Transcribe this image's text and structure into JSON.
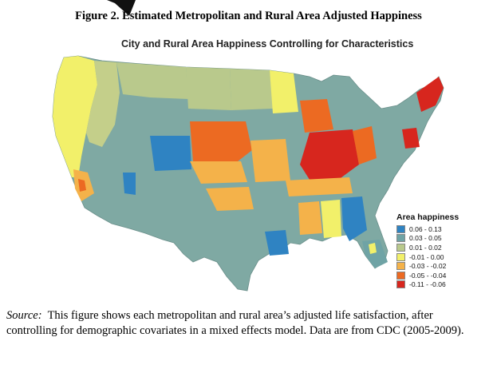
{
  "figure_title": "Figure 2. Estimated Metropolitan and Rural Area Adjusted Happiness",
  "map_title": "City and Rural Area Happiness Controlling for Characteristics",
  "legend": {
    "title": "Area happiness",
    "items": [
      {
        "label": "0.06 - 0.13",
        "color": "#2f83c2"
      },
      {
        "label": "0.03 - 0.05",
        "color": "#6fa3a5"
      },
      {
        "label": "0.01 - 0.02",
        "color": "#b9c98c"
      },
      {
        "label": "-0.01 - 0.00",
        "color": "#f2f06a"
      },
      {
        "label": "-0.03 - -0.02",
        "color": "#f4b24a"
      },
      {
        "label": "-0.05 - -0.04",
        "color": "#ec6a22"
      },
      {
        "label": "-0.11 - -0.06",
        "color": "#d7261e"
      }
    ]
  },
  "caption": {
    "source_label": "Source:",
    "text": "This figure shows each metropolitan and rural area’s adjusted life satisfaction, after controlling for demographic covariates in a mixed effects model. Data are from CDC (2005-2009)."
  }
}
